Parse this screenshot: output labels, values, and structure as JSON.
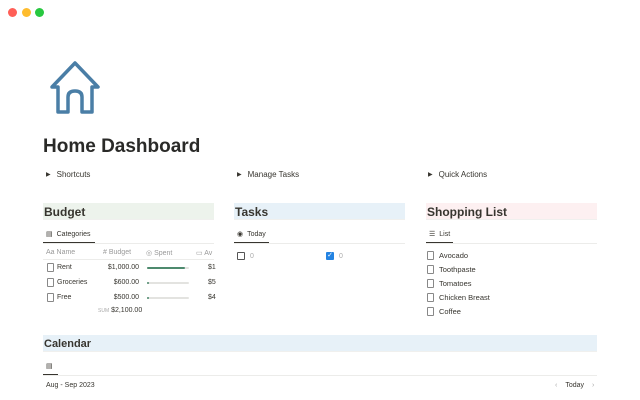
{
  "window": {
    "controls": [
      {
        "name": "close",
        "color": "#ff5f57"
      },
      {
        "name": "minimize",
        "color": "#febc2e"
      },
      {
        "name": "maximize",
        "color": "#28c840"
      }
    ]
  },
  "page": {
    "icon": "house-icon",
    "icon_color": "#4a7ea6",
    "title": "Home Dashboard"
  },
  "toggles": [
    "Shortcuts",
    "Manage Tasks",
    "Quick Actions"
  ],
  "budget": {
    "title": "Budget",
    "title_bg": "#edf3ec",
    "view": "Categories",
    "columns": [
      "Name",
      "Budget",
      "Spent",
      "Av"
    ],
    "rows": [
      {
        "name": "Rent",
        "budget": "$1,000.00",
        "spent": 0.9,
        "avail": "$1"
      },
      {
        "name": "Groceries",
        "budget": "$600.00",
        "spent": 0.05,
        "avail": "$5"
      },
      {
        "name": "Free",
        "budget": "$500.00",
        "spent": 0.05,
        "avail": "$4"
      }
    ],
    "sum_label": "SUM",
    "sum": "$2,100.00"
  },
  "tasks": {
    "title": "Tasks",
    "title_bg": "#e7f1f8",
    "view": "Today",
    "groups": [
      {
        "checked": false,
        "count": "0"
      },
      {
        "checked": true,
        "count": "0"
      }
    ]
  },
  "shopping": {
    "title": "Shopping List",
    "title_bg": "#fdf0f1",
    "view": "List",
    "items": [
      "Avocado",
      "Toothpaste",
      "Tomatoes",
      "Chicken Breast",
      "Coffee"
    ]
  },
  "calendar": {
    "title": "Calendar",
    "title_bg": "#e7f1f8",
    "range": "Aug - Sep 2023",
    "today": "Today"
  }
}
